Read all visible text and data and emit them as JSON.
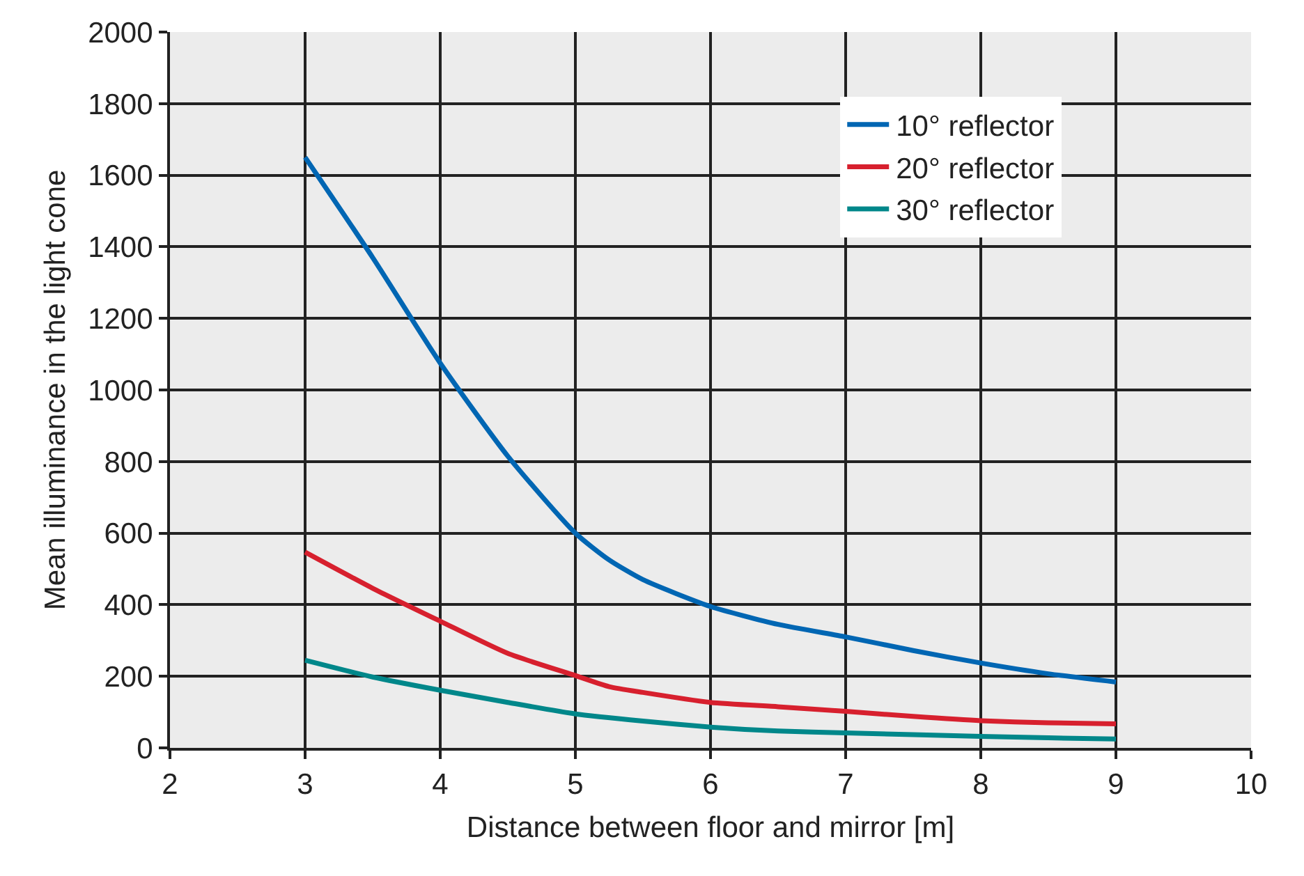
{
  "chart_data": {
    "type": "line",
    "xlabel": "Distance between floor and mirror [m]",
    "ylabel": "Mean illuminance in the light cone",
    "xlim": [
      2,
      10
    ],
    "xticks": [
      2,
      3,
      4,
      5,
      6,
      7,
      8,
      9,
      10
    ],
    "ylim": [
      0,
      2000
    ],
    "yticks": [
      0,
      200,
      400,
      600,
      800,
      1000,
      1200,
      1400,
      1600,
      1800,
      2000
    ],
    "grid": true,
    "legend": "top right",
    "marker": "none",
    "line_style": "solid",
    "series": [
      {
        "name": "10° reflector",
        "color": "#0066b3",
        "x": [
          3,
          3.5,
          4,
          4.5,
          5,
          5.25,
          5.5,
          6,
          6.5,
          7,
          7.5,
          8,
          8.5,
          9
        ],
        "values": [
          1650,
          1370,
          1075,
          815,
          600,
          525,
          470,
          395,
          345,
          310,
          272,
          237,
          207,
          184
        ]
      },
      {
        "name": "20° reflector",
        "color": "#d7202e",
        "x": [
          3,
          3.5,
          4,
          4.5,
          5,
          5.25,
          5.5,
          6,
          6.5,
          7,
          7.5,
          8,
          8.5,
          9
        ],
        "values": [
          547,
          446,
          354,
          264,
          202,
          171,
          155,
          127,
          115,
          102,
          88,
          76,
          70,
          67
        ]
      },
      {
        "name": "30° reflector",
        "color": "#00878a",
        "x": [
          3,
          3.5,
          4,
          4.5,
          5,
          5.5,
          6,
          6.5,
          7,
          7.5,
          8,
          8.5,
          9
        ],
        "values": [
          245,
          198,
          161,
          127,
          95,
          75,
          58,
          47,
          42,
          37,
          32,
          28,
          25
        ]
      }
    ]
  }
}
